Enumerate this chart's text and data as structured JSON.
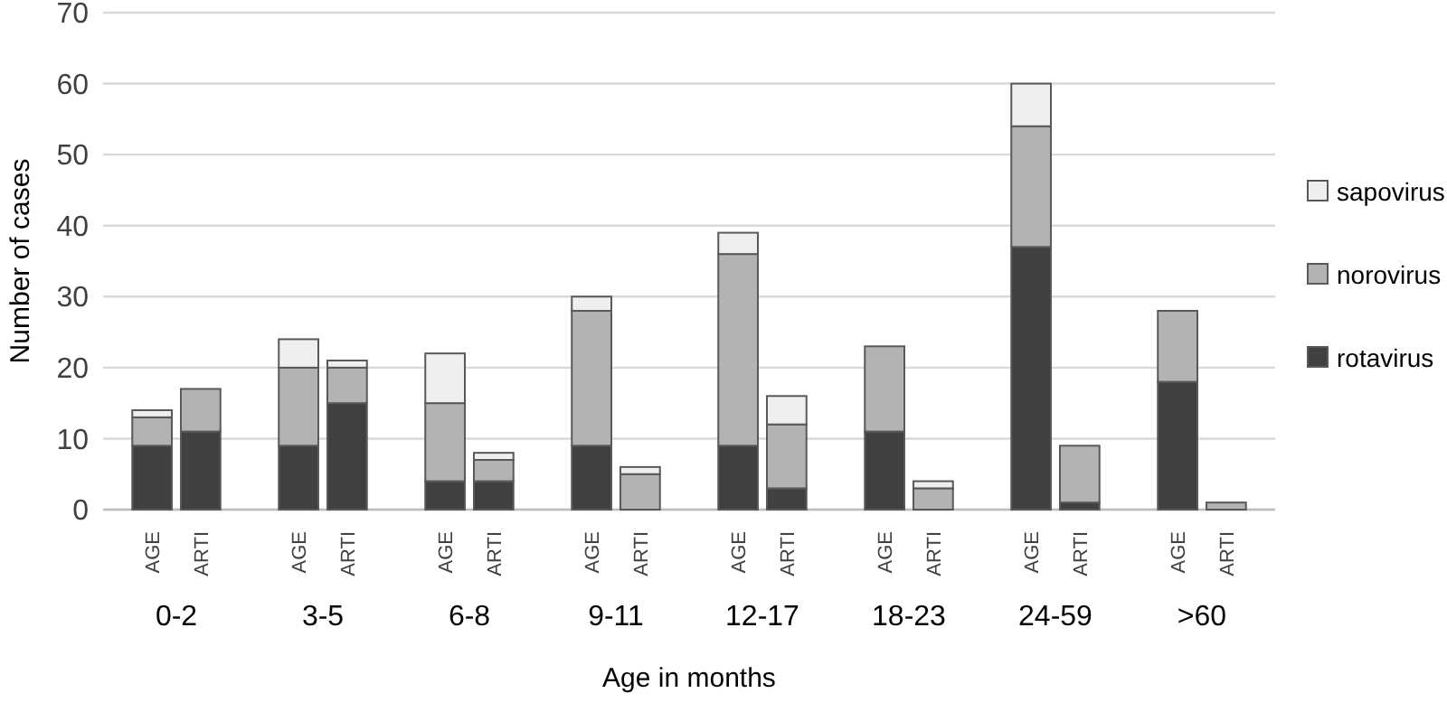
{
  "chart_data": {
    "type": "bar",
    "stacked": true,
    "xlabel": "Age in months",
    "ylabel": "Number of cases",
    "categories": [
      "AGE",
      "ARTI",
      "AGE",
      "ARTI",
      "AGE",
      "ARTI",
      "AGE",
      "ARTI",
      "AGE",
      "ARTI",
      "AGE",
      "ARTI",
      "AGE",
      "ARTI",
      "AGE",
      "ARTI"
    ],
    "series": [
      {
        "name": "rotavirus",
        "color": "#404040",
        "values": [
          9,
          11,
          9,
          15,
          4,
          4,
          9,
          0,
          9,
          3,
          11,
          0,
          37,
          1,
          18,
          0
        ]
      },
      {
        "name": "norovirus",
        "color": "#b3b3b3",
        "values": [
          4,
          6,
          11,
          5,
          11,
          3,
          19,
          5,
          27,
          9,
          12,
          3,
          17,
          8,
          10,
          1
        ]
      },
      {
        "name": "sapovirus",
        "color": "#efefef",
        "values": [
          1,
          0,
          4,
          1,
          7,
          1,
          2,
          1,
          3,
          4,
          0,
          1,
          6,
          0,
          0,
          0
        ]
      }
    ],
    "annotations": [
      "0-2",
      "3-5",
      "6-8",
      "9-11",
      "12-17",
      "18-23",
      "24-59",
      ">60"
    ],
    "ylim": [
      0,
      70
    ],
    "yticks": [
      0,
      10,
      20,
      30,
      40,
      50,
      60,
      70
    ],
    "grid": "y",
    "legend": "right"
  }
}
